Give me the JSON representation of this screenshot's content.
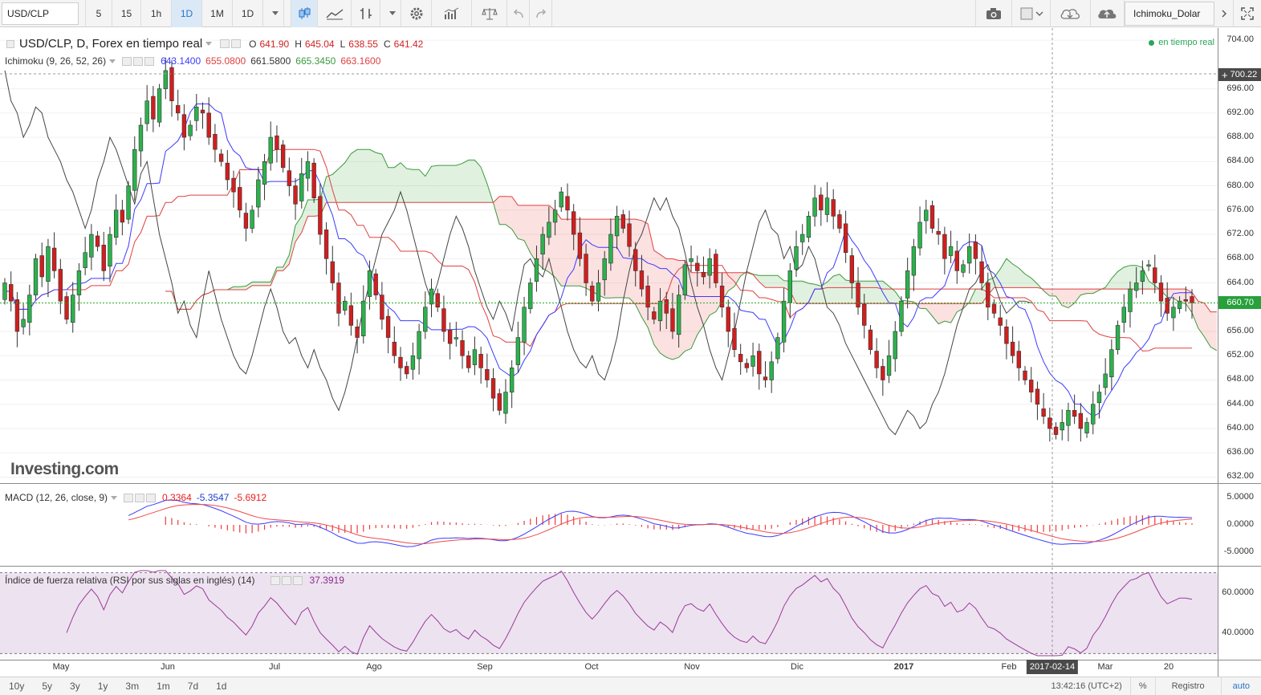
{
  "toolbar": {
    "symbol": "USD/CLP",
    "intervals": [
      "5",
      "15",
      "1h",
      "1D",
      "1M",
      "1D"
    ],
    "active_interval_index": 3,
    "layout_name": "Ichimoku_Dolar"
  },
  "main_legend": {
    "title": "USD/CLP, D, Forex en tiempo real",
    "o_label": "O",
    "o_value": "641.90",
    "h_label": "H",
    "h_value": "645.04",
    "l_label": "L",
    "l_value": "638.55",
    "c_label": "C",
    "c_value": "641.42",
    "realtime": "en tiempo real"
  },
  "ichimoku_legend": {
    "title": "Ichimoku (9, 26, 52, 26)",
    "values": [
      "643.1400",
      "655.0800",
      "661.5800",
      "665.3450",
      "663.1600"
    ],
    "colors": [
      "#3b3bff",
      "#e04040",
      "#333333",
      "#3c9a3c",
      "#e04040"
    ]
  },
  "macd_legend": {
    "title": "MACD (12, 26, close, 9)",
    "values": [
      "0.3364",
      "-5.3547",
      "-5.6912"
    ],
    "colors": [
      "#e82020",
      "#2040d0",
      "#e82020"
    ]
  },
  "rsi_legend": {
    "title": "Índice de fuerza relativa (RSI por sus siglas en inglés) (14)",
    "value": "37.3919",
    "color": "#8a2a8a"
  },
  "price_axis": [
    "704.00",
    "696.00",
    "692.00",
    "688.00",
    "684.00",
    "680.00",
    "676.00",
    "672.00",
    "668.00",
    "664.00",
    "656.00",
    "652.00",
    "648.00",
    "644.00",
    "640.00",
    "636.00",
    "632.00"
  ],
  "price_badges": {
    "top": "700.22",
    "current": "660.70"
  },
  "macd_axis": [
    "5.0000",
    "0.0000",
    "-5.0000"
  ],
  "rsi_axis": [
    "60.0000",
    "40.0000"
  ],
  "time_axis": [
    "May",
    "Jun",
    "Jul",
    "Ago",
    "Sep",
    "Oct",
    "Nov",
    "Dic",
    "2017",
    "Feb",
    "Mar",
    "20"
  ],
  "crosshair_date": "2017-02-14",
  "watermark": "Investing.com",
  "bottombar": {
    "ranges": [
      "10y",
      "5y",
      "3y",
      "1y",
      "3m",
      "1m",
      "7d",
      "1d"
    ],
    "clock": "13:42:16 (UTC+2)",
    "percent": "%",
    "registro": "Registro",
    "auto": "auto"
  },
  "chart_data": {
    "type": "candlestick",
    "symbol": "USD/CLP",
    "price_range": [
      631,
      706
    ],
    "last_close": 660.7,
    "crosshair_price": 700.22,
    "candles_start": 662.0,
    "candles_path": [
      664,
      661,
      656,
      658,
      662,
      668,
      665,
      670,
      666,
      661,
      658,
      662,
      666,
      669,
      672,
      670,
      666,
      672,
      676,
      674,
      680,
      686,
      690,
      694,
      691,
      696,
      699,
      694,
      692,
      688,
      690,
      693,
      692,
      688,
      686,
      684,
      681,
      679,
      676,
      673,
      676,
      681,
      684,
      688,
      686,
      683,
      680,
      677,
      682,
      684,
      678,
      672,
      668,
      664,
      659,
      661,
      657,
      655,
      661,
      666,
      662,
      658,
      655,
      652,
      650,
      649,
      652,
      656,
      660,
      663,
      660,
      656,
      654,
      655,
      652,
      650,
      653,
      650,
      648,
      645,
      643,
      646,
      650,
      655,
      660,
      664,
      668,
      672,
      674,
      676,
      679,
      676,
      672,
      668,
      664,
      661,
      664,
      668,
      672,
      675,
      673,
      670,
      666,
      663,
      660,
      658,
      661,
      659,
      656,
      662,
      667,
      668,
      666,
      665,
      668,
      664,
      660,
      656,
      653,
      651,
      650,
      652,
      649,
      648,
      651,
      655,
      661,
      666,
      670,
      672,
      675,
      678,
      676,
      678,
      675,
      673,
      669,
      664,
      660,
      657,
      653,
      650,
      648,
      652,
      656,
      661,
      666,
      670,
      674,
      676,
      673,
      672,
      668,
      670,
      666,
      667,
      670,
      668,
      664,
      660,
      659,
      657,
      654,
      652,
      650,
      648,
      646,
      644,
      642,
      640,
      639,
      641,
      643,
      642,
      640,
      641,
      644,
      646,
      649,
      653,
      657,
      660,
      663,
      664,
      666,
      667,
      664,
      661,
      659,
      660,
      661,
      661,
      660.7
    ],
    "macd_range": [
      -7.5,
      7.5
    ],
    "rsi_range": [
      27,
      73
    ],
    "rsi_bands": [
      30,
      70
    ],
    "series": [
      {
        "name": "Ichimoku Tenkan",
        "color": "#3b3bff"
      },
      {
        "name": "Ichimoku Kijun",
        "color": "#e04040"
      },
      {
        "name": "Ichimoku Chikou",
        "color": "#333333"
      },
      {
        "name": "Senkou A",
        "color": "#3c9a3c"
      },
      {
        "name": "Senkou B",
        "color": "#e04040"
      },
      {
        "name": "MACD",
        "color": "#3b3bff"
      },
      {
        "name": "Signal",
        "color": "#e04040"
      },
      {
        "name": "RSI",
        "color": "#9a3a9a"
      }
    ]
  }
}
